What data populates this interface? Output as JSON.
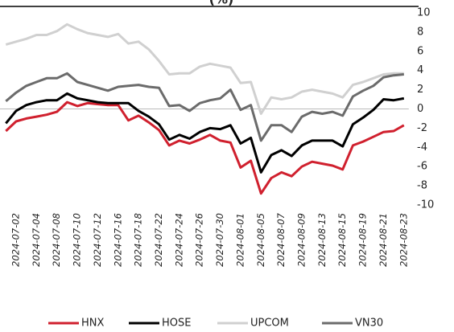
{
  "chart_data": {
    "type": "line",
    "title": "(%)",
    "categories": [
      null,
      "2024-07-02",
      null,
      "2024-07-04",
      null,
      "2024-07-08",
      null,
      "2024-07-10",
      null,
      "2024-07-12",
      null,
      "2024-07-16",
      null,
      "2024-07-18",
      null,
      "2024-07-22",
      null,
      "2024-07-24",
      null,
      "2024-07-26",
      null,
      "2024-07-30",
      null,
      "2024-08-01",
      null,
      "2024-08-05",
      null,
      "2024-08-07",
      null,
      "2024-08-09",
      null,
      "2024-08-13",
      null,
      "2024-08-15",
      null,
      "2024-08-19",
      null,
      "2024-08-21",
      null,
      "2024-08-23"
    ],
    "series": [
      {
        "name": "HNX",
        "color": "#d0202e",
        "values": [
          -2.3,
          -1.3,
          -1.0,
          -0.8,
          -0.6,
          -0.3,
          0.7,
          0.3,
          0.6,
          0.5,
          0.4,
          0.4,
          -1.2,
          -0.7,
          -1.4,
          -2.2,
          -3.8,
          -3.3,
          -3.6,
          -3.2,
          -2.7,
          -3.3,
          -3.5,
          -6.1,
          -5.4,
          -8.8,
          -7.2,
          -6.6,
          -7.0,
          -6.0,
          -5.5,
          -5.7,
          -5.9,
          -6.3,
          -3.8,
          -3.4,
          -2.9,
          -2.4,
          -2.3,
          -1.7
        ]
      },
      {
        "name": "HOSE",
        "color": "#000000",
        "values": [
          -1.5,
          -0.2,
          0.4,
          0.7,
          0.9,
          0.9,
          1.6,
          1.1,
          0.9,
          0.7,
          0.6,
          0.6,
          0.6,
          -0.2,
          -0.8,
          -1.6,
          -3.2,
          -2.7,
          -3.1,
          -2.4,
          -2.0,
          -2.1,
          -1.7,
          -3.6,
          -3.0,
          -6.6,
          -4.8,
          -4.3,
          -4.9,
          -3.8,
          -3.3,
          -3.3,
          -3.3,
          -3.9,
          -1.6,
          -0.9,
          -0.1,
          1.0,
          0.9,
          1.1
        ]
      },
      {
        "name": "UPCOM",
        "color": "#d0d0d0",
        "values": [
          6.7,
          7.0,
          7.3,
          7.7,
          7.7,
          8.1,
          8.8,
          8.3,
          7.9,
          7.7,
          7.5,
          7.8,
          6.8,
          7.0,
          6.2,
          5.0,
          3.6,
          3.7,
          3.7,
          4.4,
          4.7,
          4.5,
          4.3,
          2.7,
          2.8,
          -0.5,
          1.2,
          1.0,
          1.2,
          1.8,
          2.0,
          1.8,
          1.6,
          1.2,
          2.5,
          2.8,
          3.2,
          3.6,
          3.7,
          3.7
        ]
      },
      {
        "name": "VN30",
        "color": "#6b6b6b",
        "values": [
          0.8,
          1.7,
          2.4,
          2.8,
          3.2,
          3.2,
          3.7,
          2.8,
          2.5,
          2.2,
          1.9,
          2.3,
          2.4,
          2.5,
          2.3,
          2.2,
          0.3,
          0.4,
          -0.2,
          0.6,
          0.9,
          1.1,
          2.0,
          -0.1,
          0.4,
          -3.3,
          -1.7,
          -1.7,
          -2.4,
          -0.8,
          -0.3,
          -0.5,
          -0.3,
          -0.7,
          1.3,
          1.9,
          2.4,
          3.3,
          3.5,
          3.6
        ]
      }
    ],
    "ylim": [
      -10,
      10
    ],
    "yticks": [
      -10,
      -8,
      -6,
      -4,
      -2,
      0,
      2,
      4,
      6,
      8,
      10
    ],
    "legend": "bottom"
  }
}
